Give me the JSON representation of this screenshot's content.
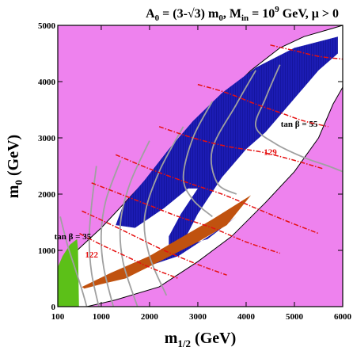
{
  "chart_data": {
    "type": "area",
    "title": {
      "base": "A",
      "base_sub": "0",
      "eq": " = (3-√3) m",
      "m0_sub": "0",
      "comma": ", M",
      "min_sub": "in",
      "eq2": " = 10",
      "exp": "9",
      "tail": " GeV, μ > 0"
    },
    "xlabel": {
      "base": "m",
      "sub": "1/2",
      "tail": " (GeV)"
    },
    "ylabel": {
      "base": "m",
      "sub": "0",
      "tail": " (GeV)"
    },
    "xlim": [
      100,
      6000
    ],
    "ylim": [
      0,
      5000
    ],
    "x_ticks": [
      100,
      1000,
      2000,
      3000,
      4000,
      5000,
      6000
    ],
    "y_ticks": [
      0,
      1000,
      2000,
      3000,
      4000,
      5000
    ],
    "x_tick_labels": [
      "100",
      "1000",
      "2000",
      "3000",
      "4000",
      "5000",
      "6000"
    ],
    "y_tick_labels": [
      "0",
      "1000",
      "2000",
      "3000",
      "4000",
      "5000"
    ],
    "colors": {
      "excluded": "#ee82ee",
      "allowed": "#ffffff",
      "dark_matter": "#1c1cb4",
      "charged_lsp": "#c0520f",
      "lep_excluded": "#5cc018",
      "higgs_contour": "#e51010",
      "tanb_contour": "#a0a0a0"
    },
    "allowed_region_boundary": [
      [
        100,
        700
      ],
      [
        100,
        150
      ],
      [
        220,
        0
      ],
      [
        700,
        0
      ],
      [
        1300,
        120
      ],
      [
        2200,
        350
      ],
      [
        3000,
        800
      ],
      [
        3700,
        1250
      ],
      [
        4400,
        1850
      ],
      [
        5000,
        2400
      ],
      [
        5500,
        3000
      ],
      [
        5800,
        3600
      ],
      [
        6000,
        3900
      ],
      [
        6000,
        5000
      ],
      [
        5800,
        4950
      ],
      [
        5200,
        4800
      ],
      [
        4700,
        4600
      ],
      [
        4100,
        4200
      ],
      [
        3500,
        3700
      ],
      [
        2800,
        3050
      ],
      [
        2200,
        2500
      ],
      [
        1600,
        1950
      ],
      [
        1000,
        1400
      ],
      [
        500,
        1000
      ]
    ],
    "dark_matter_region": [
      [
        5900,
        4800
      ],
      [
        5000,
        4600
      ],
      [
        4200,
        4250
      ],
      [
        3500,
        3800
      ],
      [
        2900,
        3300
      ],
      [
        2400,
        2800
      ],
      [
        1900,
        2250
      ],
      [
        1450,
        1800
      ],
      [
        1300,
        1450
      ],
      [
        1700,
        1400
      ],
      [
        2300,
        1750
      ],
      [
        2800,
        2100
      ],
      [
        3000,
        2100
      ],
      [
        2650,
        1650
      ],
      [
        2400,
        1250
      ],
      [
        2400,
        1000
      ],
      [
        2700,
        1150
      ],
      [
        3000,
        1650
      ],
      [
        3500,
        2300
      ],
      [
        4000,
        2800
      ],
      [
        4400,
        3100
      ],
      [
        5000,
        3700
      ],
      [
        5500,
        4200
      ],
      [
        5900,
        4500
      ]
    ],
    "dark_matter_lower_band": [
      [
        2400,
        1000
      ],
      [
        3200,
        1200
      ],
      [
        3800,
        1600
      ],
      [
        3400,
        1350
      ],
      [
        2600,
        900
      ],
      [
        1900,
        700
      ],
      [
        1700,
        750
      ],
      [
        2100,
        900
      ]
    ],
    "charged_lsp_region": [
      [
        600,
        350
      ],
      [
        1200,
        600
      ],
      [
        2000,
        900
      ],
      [
        2600,
        1200
      ],
      [
        3300,
        1550
      ],
      [
        4100,
        1980
      ],
      [
        3600,
        1450
      ],
      [
        3000,
        1150
      ],
      [
        2200,
        800
      ],
      [
        1500,
        500
      ],
      [
        1000,
        400
      ],
      [
        650,
        320
      ]
    ],
    "lep_excluded_region": [
      [
        100,
        0
      ],
      [
        100,
        700
      ],
      [
        200,
        900
      ],
      [
        350,
        1100
      ],
      [
        500,
        1200
      ],
      [
        520,
        1000
      ],
      [
        540,
        0
      ]
    ],
    "higgs_contours": [
      {
        "label": "122",
        "points": [
          [
            550,
            1300
          ],
          [
            1000,
            1100
          ],
          [
            1500,
            900
          ],
          [
            2000,
            700
          ],
          [
            2600,
            500
          ]
        ]
      },
      {
        "label": "",
        "points": [
          [
            600,
            1700
          ],
          [
            1100,
            1500
          ],
          [
            1700,
            1250
          ],
          [
            2300,
            1000
          ],
          [
            3000,
            750
          ],
          [
            3600,
            560
          ]
        ]
      },
      {
        "label": "",
        "points": [
          [
            800,
            2200
          ],
          [
            1400,
            2000
          ],
          [
            2000,
            1800
          ],
          [
            2600,
            1600
          ],
          [
            3300,
            1400
          ],
          [
            4000,
            1150
          ],
          [
            4700,
            950
          ]
        ]
      },
      {
        "label": "",
        "points": [
          [
            1300,
            2700
          ],
          [
            2000,
            2450
          ],
          [
            2800,
            2200
          ],
          [
            3500,
            2000
          ],
          [
            4200,
            1750
          ],
          [
            4900,
            1500
          ],
          [
            5500,
            1300
          ]
        ]
      },
      {
        "label": "129",
        "points": [
          [
            2200,
            3200
          ],
          [
            2900,
            3000
          ],
          [
            3600,
            2850
          ],
          [
            4300,
            2750
          ],
          [
            5000,
            2600
          ],
          [
            5600,
            2450
          ]
        ]
      },
      {
        "label": "",
        "points": [
          [
            3000,
            3950
          ],
          [
            3600,
            3800
          ],
          [
            4200,
            3600
          ],
          [
            4700,
            3450
          ],
          [
            5200,
            3300
          ],
          [
            5700,
            3200
          ]
        ]
      },
      {
        "label": "",
        "points": [
          [
            4500,
            4650
          ],
          [
            5000,
            4550
          ],
          [
            5500,
            4450
          ],
          [
            6000,
            4400
          ]
        ]
      }
    ],
    "tanb_contours": [
      {
        "label": "35",
        "points": [
          [
            150,
            1600
          ],
          [
            300,
            1100
          ],
          [
            450,
            700
          ],
          [
            600,
            300
          ],
          [
            700,
            0
          ]
        ]
      },
      {
        "label": "",
        "points": [
          [
            900,
            2500
          ],
          [
            800,
            1800
          ],
          [
            750,
            1200
          ],
          [
            800,
            600
          ],
          [
            950,
            0
          ]
        ]
      },
      {
        "label": "",
        "points": [
          [
            1400,
            2600
          ],
          [
            1100,
            1900
          ],
          [
            1000,
            1300
          ],
          [
            1050,
            700
          ],
          [
            1250,
            0
          ]
        ]
      },
      {
        "label": "",
        "points": [
          [
            2000,
            2950
          ],
          [
            1600,
            2200
          ],
          [
            1400,
            1500
          ],
          [
            1450,
            800
          ],
          [
            1750,
            0
          ]
        ]
      },
      {
        "label": "",
        "points": [
          [
            2700,
            3200
          ],
          [
            2200,
            2400
          ],
          [
            1900,
            1600
          ],
          [
            2000,
            900
          ],
          [
            2350,
            200
          ]
        ]
      },
      {
        "label": "",
        "points": [
          [
            3300,
            3650
          ],
          [
            2900,
            3000
          ],
          [
            2700,
            2300
          ],
          [
            2900,
            1900
          ],
          [
            3300,
            1600
          ]
        ]
      },
      {
        "label": "",
        "points": [
          [
            4200,
            4200
          ],
          [
            3800,
            3600
          ],
          [
            3300,
            2800
          ],
          [
            3400,
            2200
          ],
          [
            3800,
            2000
          ]
        ]
      },
      {
        "label": "55",
        "points": [
          [
            4700,
            4300
          ],
          [
            4400,
            3700
          ],
          [
            4200,
            3200
          ],
          [
            4600,
            2900
          ],
          [
            5200,
            2650
          ],
          [
            5700,
            2500
          ],
          [
            6000,
            2400
          ]
        ]
      }
    ],
    "annotations": [
      {
        "text": "129",
        "x": 4500,
        "y": 2700,
        "color": "#e51010"
      },
      {
        "text": "122",
        "x": 800,
        "y": 870,
        "color": "#e51010"
      },
      {
        "text": "tan β = 55",
        "x": 5100,
        "y": 3200,
        "color": "#000000"
      },
      {
        "text": "tan β = 35",
        "x": 410,
        "y": 1200,
        "color": "#000000"
      }
    ],
    "grid": false,
    "legend": "none"
  }
}
